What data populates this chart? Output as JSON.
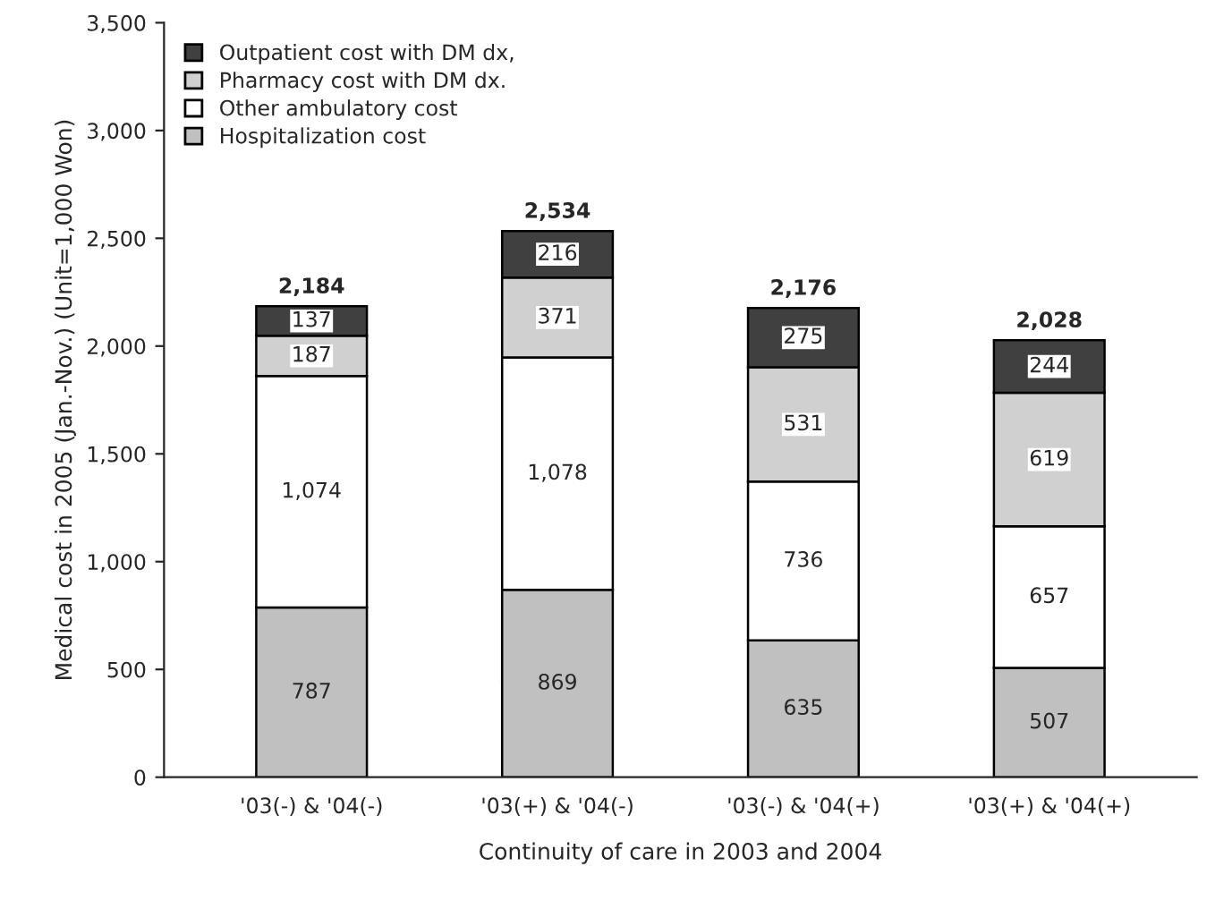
{
  "chart_data": {
    "type": "bar",
    "stacked": true,
    "xlabel": "Continuity of care in 2003 and 2004",
    "ylabel": "Medical cost in 2005 (Jan.-Nov.) (Unit=1,000 Won)",
    "categories": [
      "'03(-) & '04(-)",
      "'03(+) & '04(-)",
      "'03(-) & '04(+)",
      "'03(+) & '04(+)"
    ],
    "series": [
      {
        "name": "Hospitalization cost",
        "color": "#c0c0c0",
        "values": [
          787,
          869,
          635,
          507
        ],
        "value_labels": [
          "787",
          "869",
          "635",
          "507"
        ]
      },
      {
        "name": "Other ambulatory cost",
        "color": "#ffffff",
        "values": [
          1074,
          1078,
          736,
          657
        ],
        "value_labels": [
          "1,074",
          "1,078",
          "736",
          "657"
        ]
      },
      {
        "name": "Pharmacy cost with DM dx.",
        "color": "#d0d0d0",
        "values": [
          187,
          371,
          531,
          619
        ],
        "value_labels": [
          "187",
          "371",
          "531",
          "619"
        ]
      },
      {
        "name": "Outpatient cost with DM dx,",
        "color": "#404040",
        "values": [
          137,
          216,
          275,
          244
        ],
        "value_labels": [
          "137",
          "216",
          "275",
          "244"
        ]
      }
    ],
    "totals": [
      "2,184",
      "2,534",
      "2,176",
      "2,028"
    ],
    "ylim": [
      0,
      3500
    ],
    "yticks": [
      0,
      500,
      {
        "value": 1000,
        "label": "1,000"
      },
      {
        "value": 1500,
        "label": "1,500"
      },
      {
        "value": 2000,
        "label": "2,000"
      },
      {
        "value": 2500,
        "label": "2,500"
      },
      {
        "value": 3000,
        "label": "3,000"
      },
      {
        "value": 3500,
        "label": "3,500"
      }
    ],
    "grid": false,
    "legend": "top left"
  }
}
